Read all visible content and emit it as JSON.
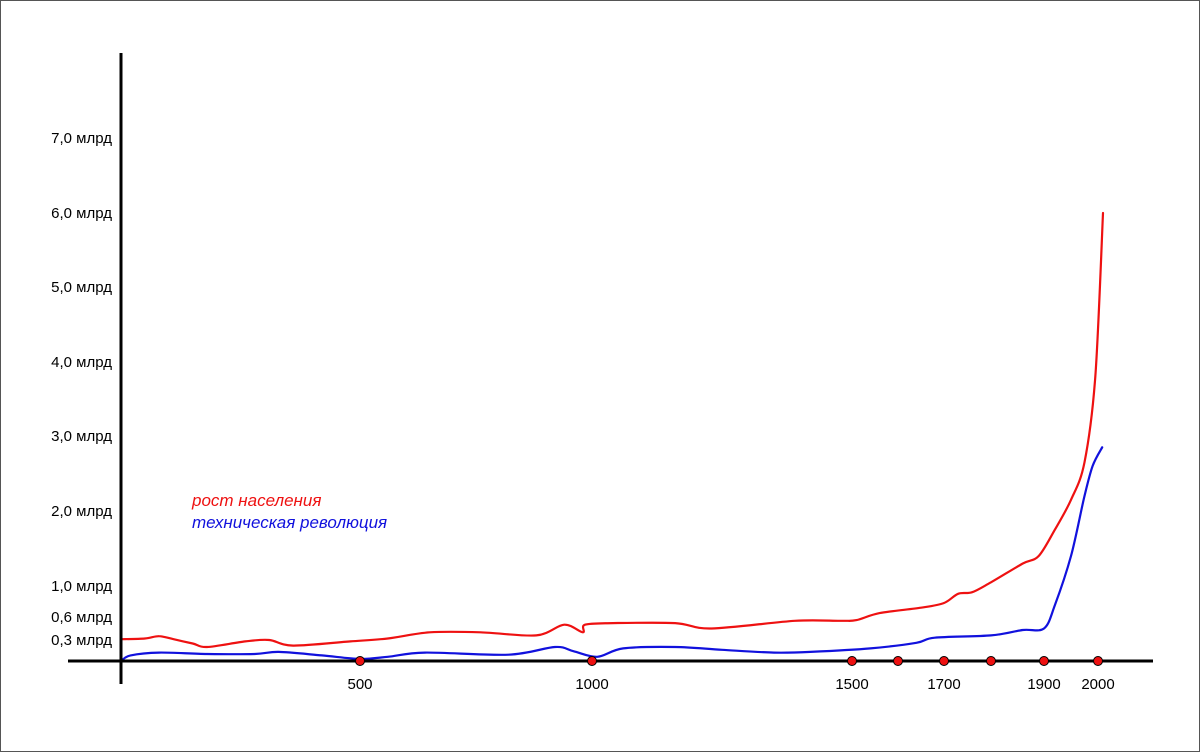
{
  "chart_data": {
    "type": "line",
    "title": "",
    "xlabel": "",
    "ylabel": "",
    "y_ticks": [
      {
        "value": 0.3,
        "label": "0,3 млрд"
      },
      {
        "value": 0.6,
        "label": "0,6 млрд"
      },
      {
        "value": 1.0,
        "label": "1,0 млрд"
      },
      {
        "value": 2.0,
        "label": "2,0 млрд"
      },
      {
        "value": 3.0,
        "label": "3,0 млрд"
      },
      {
        "value": 4.0,
        "label": "4,0 млрд"
      },
      {
        "value": 5.0,
        "label": "5,0 млрд"
      },
      {
        "value": 6.0,
        "label": "6,0 млрд"
      },
      {
        "value": 7.0,
        "label": "7,0 млрд"
      }
    ],
    "x_ticks": [
      {
        "value": 500,
        "label": "500"
      },
      {
        "value": 1000,
        "label": "1000"
      },
      {
        "value": 1500,
        "label": "1500"
      },
      {
        "value": 1600,
        "label": ""
      },
      {
        "value": 1700,
        "label": "1700"
      },
      {
        "value": 1800,
        "label": ""
      },
      {
        "value": 1900,
        "label": "1900"
      },
      {
        "value": 2000,
        "label": "2000"
      }
    ],
    "series": [
      {
        "name": "рост населения",
        "color": "#ee1111",
        "points": [
          [
            0,
            0.31
          ],
          [
            50,
            0.32
          ],
          [
            80,
            0.35
          ],
          [
            110,
            0.31
          ],
          [
            150,
            0.25
          ],
          [
            180,
            0.2
          ],
          [
            260,
            0.28
          ],
          [
            310,
            0.3
          ],
          [
            360,
            0.22
          ],
          [
            480,
            0.28
          ],
          [
            560,
            0.32
          ],
          [
            650,
            0.4
          ],
          [
            760,
            0.4
          ],
          [
            880,
            0.36
          ],
          [
            940,
            0.5
          ],
          [
            980,
            0.4
          ],
          [
            985,
            0.5
          ],
          [
            1040,
            0.52
          ],
          [
            1160,
            0.52
          ],
          [
            1230,
            0.45
          ],
          [
            1390,
            0.55
          ],
          [
            1480,
            0.55
          ],
          [
            1510,
            0.56
          ],
          [
            1560,
            0.65
          ],
          [
            1650,
            0.72
          ],
          [
            1700,
            0.78
          ],
          [
            1730,
            0.9
          ],
          [
            1760,
            0.92
          ],
          [
            1800,
            1.05
          ],
          [
            1860,
            1.3
          ],
          [
            1890,
            1.4
          ],
          [
            1920,
            1.75
          ],
          [
            1950,
            2.15
          ],
          [
            1975,
            2.65
          ],
          [
            1995,
            3.8
          ],
          [
            2012,
            6.0
          ]
        ]
      },
      {
        "name": "техническая революция",
        "color": "#1111dd",
        "points": [
          [
            0,
            0.0
          ],
          [
            20,
            0.08
          ],
          [
            80,
            0.12
          ],
          [
            180,
            0.1
          ],
          [
            280,
            0.1
          ],
          [
            330,
            0.13
          ],
          [
            420,
            0.08
          ],
          [
            500,
            0.03
          ],
          [
            560,
            0.06
          ],
          [
            640,
            0.12
          ],
          [
            820,
            0.09
          ],
          [
            920,
            0.2
          ],
          [
            960,
            0.14
          ],
          [
            1010,
            0.06
          ],
          [
            1060,
            0.18
          ],
          [
            1160,
            0.2
          ],
          [
            1250,
            0.16
          ],
          [
            1350,
            0.12
          ],
          [
            1420,
            0.13
          ],
          [
            1540,
            0.18
          ],
          [
            1640,
            0.26
          ],
          [
            1680,
            0.33
          ],
          [
            1800,
            0.36
          ],
          [
            1860,
            0.43
          ],
          [
            1900,
            0.45
          ],
          [
            1920,
            0.75
          ],
          [
            1950,
            1.4
          ],
          [
            1975,
            2.2
          ],
          [
            1990,
            2.6
          ],
          [
            2010,
            2.85
          ]
        ]
      }
    ],
    "markers": [
      500,
      1000,
      1500,
      1600,
      1700,
      1800,
      1900,
      2000
    ],
    "marker_color": "#ee1111",
    "legend": [
      {
        "label": "рост населения",
        "color": "#ee1111"
      },
      {
        "label": "техническая революция",
        "color": "#1111dd"
      }
    ],
    "grid": false,
    "legend_position": "middle-left"
  }
}
